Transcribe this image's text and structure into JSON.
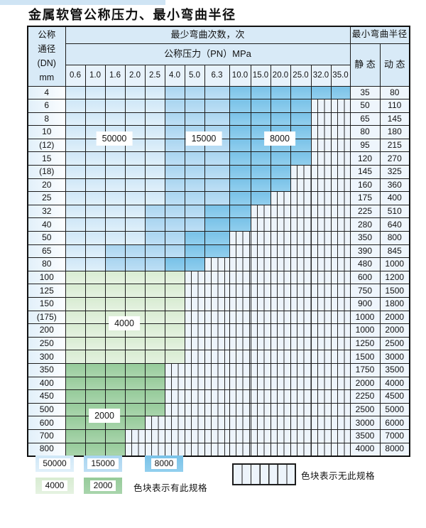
{
  "page": {
    "title": "金属软管公称压力、最小弯曲半径"
  },
  "table_header": {
    "dn_label_lines": [
      "公称",
      "通径",
      "(DN)",
      "mm"
    ],
    "bend_cycles_label": "最少弯曲次数，次",
    "pressure_label": "公称压力（PN）MPa",
    "min_radius_label": "最小弯曲半径",
    "static_label": "静 态",
    "dynamic_label": "动 态"
  },
  "colors": {
    "cL": "#cfe7f7",
    "cL2": "#e0f0fa",
    "cM": "#a9d5f0",
    "cM2": "#bedff5",
    "cD": "#79c2e8",
    "cD2": "#92cfee",
    "cG4": "#d8ecd2",
    "cG42": "#e5f2e1",
    "cG2": "#96cb9a",
    "cG22": "#a9d5ac"
  },
  "chart_data": {
    "type": "table",
    "title": "金属软管公称压力、最小弯曲半径",
    "pressure_columns": [
      "0.6",
      "1.0",
      "1.6",
      "2.0",
      "2.5",
      "4.0",
      "5.0",
      "6.3",
      "10.0",
      "15.0",
      "20.0",
      "25.0",
      "32.0",
      "35.0"
    ],
    "value_columns": [
      "静 态",
      "动 态"
    ],
    "cell_categories": {
      "L": "50000次",
      "M": "15000次",
      "D": "8000次",
      "G4": "4000次",
      "G2": "2000次",
      "X": "无此规格"
    },
    "rows": [
      {
        "dn": "4",
        "cells": [
          "L",
          "L",
          "L",
          "L",
          "L",
          "M",
          "M",
          "M",
          "D",
          "D",
          "D",
          "D",
          "D",
          "D"
        ],
        "static": "35",
        "dynamic": "80"
      },
      {
        "dn": "6",
        "cells": [
          "L",
          "L",
          "L",
          "L",
          "L",
          "M",
          "M",
          "M",
          "D",
          "D",
          "D",
          "D",
          "X",
          "X"
        ],
        "static": "50",
        "dynamic": "110"
      },
      {
        "dn": "8",
        "cells": [
          "L",
          "L",
          "L",
          "L",
          "L",
          "M",
          "M",
          "M",
          "D",
          "D",
          "D",
          "D",
          "X",
          "X"
        ],
        "static": "65",
        "dynamic": "145"
      },
      {
        "dn": "10",
        "cells": [
          "L",
          "L",
          "L",
          "L",
          "L",
          "M",
          "M",
          "M",
          "D",
          "D",
          "D",
          "D",
          "X",
          "X"
        ],
        "static": "80",
        "dynamic": "180"
      },
      {
        "dn": "(12)",
        "cells": [
          "L",
          "L",
          "L",
          "L",
          "L",
          "M",
          "M",
          "M",
          "D",
          "D",
          "D",
          "D",
          "X",
          "X"
        ],
        "static": "95",
        "dynamic": "215"
      },
      {
        "dn": "15",
        "cells": [
          "L",
          "L",
          "L",
          "L",
          "L",
          "M",
          "M",
          "M",
          "D",
          "D",
          "D",
          "D",
          "X",
          "X"
        ],
        "static": "120",
        "dynamic": "270"
      },
      {
        "dn": "(18)",
        "cells": [
          "L",
          "L",
          "L",
          "L",
          "L",
          "M",
          "M",
          "M",
          "D",
          "D",
          "D",
          "X",
          "X",
          "X"
        ],
        "static": "145",
        "dynamic": "325"
      },
      {
        "dn": "20",
        "cells": [
          "L",
          "L",
          "L",
          "L",
          "L",
          "M",
          "M",
          "M",
          "D",
          "D",
          "D",
          "X",
          "X",
          "X"
        ],
        "static": "160",
        "dynamic": "360"
      },
      {
        "dn": "25",
        "cells": [
          "L",
          "L",
          "L",
          "L",
          "L",
          "M",
          "M",
          "M",
          "D",
          "D",
          "X",
          "X",
          "X",
          "X"
        ],
        "static": "175",
        "dynamic": "400"
      },
      {
        "dn": "32",
        "cells": [
          "L",
          "L",
          "L",
          "L",
          "M",
          "M",
          "M",
          "D",
          "D",
          "X",
          "X",
          "X",
          "X",
          "X"
        ],
        "static": "225",
        "dynamic": "510"
      },
      {
        "dn": "40",
        "cells": [
          "L",
          "L",
          "L",
          "L",
          "M",
          "M",
          "M",
          "D",
          "D",
          "X",
          "X",
          "X",
          "X",
          "X"
        ],
        "static": "280",
        "dynamic": "640"
      },
      {
        "dn": "50",
        "cells": [
          "L",
          "L",
          "L",
          "L",
          "M",
          "M",
          "D",
          "D",
          "X",
          "X",
          "X",
          "X",
          "X",
          "X"
        ],
        "static": "350",
        "dynamic": "800"
      },
      {
        "dn": "65",
        "cells": [
          "L",
          "L",
          "M",
          "M",
          "M",
          "M",
          "D",
          "D",
          "X",
          "X",
          "X",
          "X",
          "X",
          "X"
        ],
        "static": "390",
        "dynamic": "845"
      },
      {
        "dn": "80",
        "cells": [
          "L",
          "L",
          "M",
          "M",
          "M",
          "D",
          "D",
          "X",
          "X",
          "X",
          "X",
          "X",
          "X",
          "X"
        ],
        "static": "480",
        "dynamic": "1000"
      },
      {
        "dn": "100",
        "cells": [
          "G4",
          "G4",
          "G4",
          "G4",
          "G4",
          "G4",
          "X",
          "X",
          "X",
          "X",
          "X",
          "X",
          "X",
          "X"
        ],
        "static": "600",
        "dynamic": "1200"
      },
      {
        "dn": "125",
        "cells": [
          "G4",
          "G4",
          "G4",
          "G4",
          "G4",
          "G4",
          "X",
          "X",
          "X",
          "X",
          "X",
          "X",
          "X",
          "X"
        ],
        "static": "750",
        "dynamic": "1500"
      },
      {
        "dn": "150",
        "cells": [
          "G4",
          "G4",
          "G4",
          "G4",
          "G4",
          "G4",
          "X",
          "X",
          "X",
          "X",
          "X",
          "X",
          "X",
          "X"
        ],
        "static": "900",
        "dynamic": "1800"
      },
      {
        "dn": "(175)",
        "cells": [
          "G4",
          "G4",
          "G4",
          "G4",
          "G4",
          "G4",
          "X",
          "X",
          "X",
          "X",
          "X",
          "X",
          "X",
          "X"
        ],
        "static": "1000",
        "dynamic": "2000"
      },
      {
        "dn": "200",
        "cells": [
          "G4",
          "G4",
          "G4",
          "G4",
          "G4",
          "G4",
          "X",
          "X",
          "X",
          "X",
          "X",
          "X",
          "X",
          "X"
        ],
        "static": "1000",
        "dynamic": "2000"
      },
      {
        "dn": "250",
        "cells": [
          "G4",
          "G4",
          "G4",
          "G4",
          "G4",
          "G4",
          "X",
          "X",
          "X",
          "X",
          "X",
          "X",
          "X",
          "X"
        ],
        "static": "1250",
        "dynamic": "2500"
      },
      {
        "dn": "300",
        "cells": [
          "G4",
          "G4",
          "G4",
          "G4",
          "G4",
          "G4",
          "X",
          "X",
          "X",
          "X",
          "X",
          "X",
          "X",
          "X"
        ],
        "static": "1500",
        "dynamic": "3000"
      },
      {
        "dn": "350",
        "cells": [
          "G2",
          "G2",
          "G2",
          "G2",
          "G2",
          "X",
          "X",
          "X",
          "X",
          "X",
          "X",
          "X",
          "X",
          "X"
        ],
        "static": "1750",
        "dynamic": "3500"
      },
      {
        "dn": "400",
        "cells": [
          "G2",
          "G2",
          "G2",
          "G2",
          "G2",
          "X",
          "X",
          "X",
          "X",
          "X",
          "X",
          "X",
          "X",
          "X"
        ],
        "static": "2000",
        "dynamic": "4000"
      },
      {
        "dn": "450",
        "cells": [
          "G2",
          "G2",
          "G2",
          "G2",
          "G2",
          "X",
          "X",
          "X",
          "X",
          "X",
          "X",
          "X",
          "X",
          "X"
        ],
        "static": "2250",
        "dynamic": "4500"
      },
      {
        "dn": "500",
        "cells": [
          "G2",
          "G2",
          "G2",
          "G2",
          "G2",
          "X",
          "X",
          "X",
          "X",
          "X",
          "X",
          "X",
          "X",
          "X"
        ],
        "static": "2500",
        "dynamic": "5000"
      },
      {
        "dn": "600",
        "cells": [
          "G2",
          "G2",
          "G2",
          "G2",
          "X",
          "X",
          "X",
          "X",
          "X",
          "X",
          "X",
          "X",
          "X",
          "X"
        ],
        "static": "3000",
        "dynamic": "6000"
      },
      {
        "dn": "700",
        "cells": [
          "G2",
          "G2",
          "G2",
          "X",
          "X",
          "X",
          "X",
          "X",
          "X",
          "X",
          "X",
          "X",
          "X",
          "X"
        ],
        "static": "3500",
        "dynamic": "7000"
      },
      {
        "dn": "800",
        "cells": [
          "G2",
          "G2",
          "G2",
          "X",
          "X",
          "X",
          "X",
          "X",
          "X",
          "X",
          "X",
          "X",
          "X",
          "X"
        ],
        "static": "4000",
        "dynamic": "8000"
      }
    ],
    "zone_labels": [
      {
        "text": "50000",
        "cols": [
          "1.6"
        ],
        "rows": [
          "10",
          "(12)"
        ]
      },
      {
        "text": "15000",
        "cols": [
          "5.0",
          "6.3"
        ],
        "rows": [
          "10",
          "(12)"
        ]
      },
      {
        "text": "8000",
        "cols": [
          "20.0"
        ],
        "rows": [
          "10",
          "(12)"
        ]
      },
      {
        "text": "4000",
        "cols": [
          "1.6",
          "2.0"
        ],
        "rows": [
          "(175)",
          "200"
        ]
      },
      {
        "text": "2000",
        "cols": [
          "1.0",
          "1.6"
        ],
        "rows": [
          "500",
          "600"
        ]
      }
    ]
  },
  "legend": {
    "items": [
      {
        "value": "50000",
        "category": "L"
      },
      {
        "value": "15000",
        "category": "M"
      },
      {
        "value": "8000",
        "category": "D"
      },
      {
        "value": "4000",
        "category": "G4"
      },
      {
        "value": "2000",
        "category": "G2"
      }
    ],
    "available_note": "色块表示有此规格",
    "unavailable_note": "色块表示无此规格"
  }
}
